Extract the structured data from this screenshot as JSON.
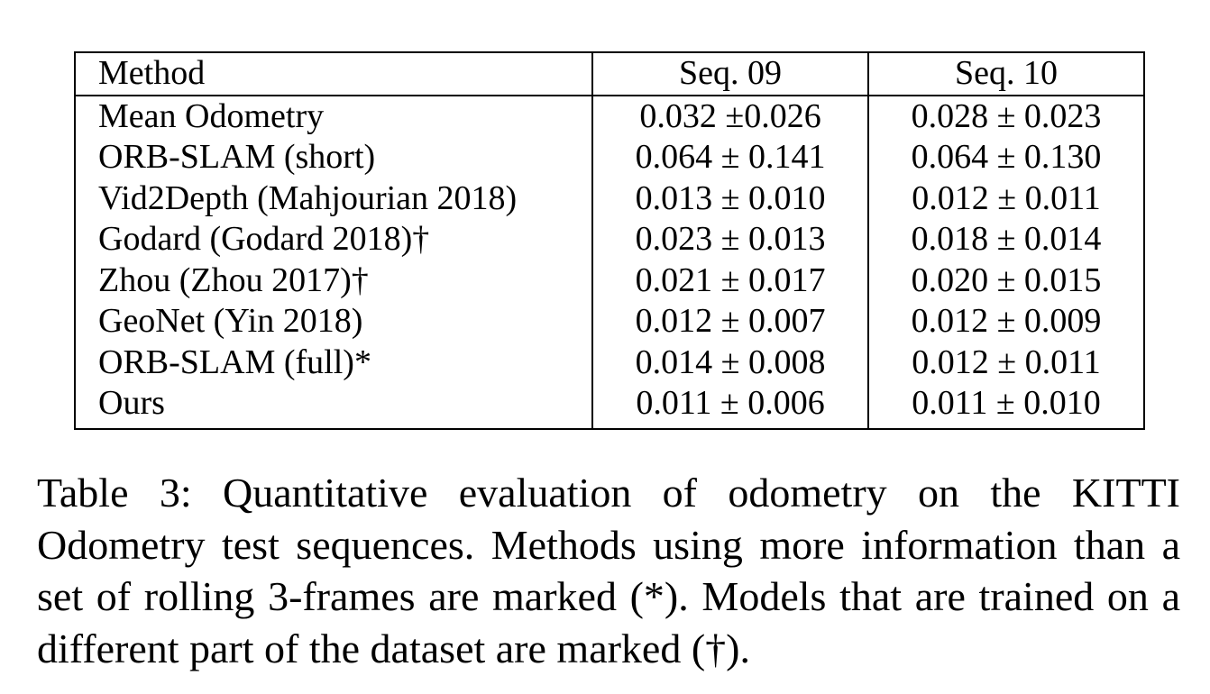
{
  "table": {
    "headers": [
      "Method",
      "Seq. 09",
      "Seq. 10"
    ],
    "rows": [
      {
        "method": "Mean Odometry",
        "seq09": "0.032 ±0.026",
        "seq10": "0.028 ± 0.023",
        "bold": false
      },
      {
        "method": "ORB-SLAM (short)",
        "seq09": "0.064 ± 0.141",
        "seq10": "0.064 ± 0.130",
        "bold": false
      },
      {
        "method": "Vid2Depth (Mahjourian 2018)",
        "seq09": "0.013 ± 0.010",
        "seq10": "0.012 ± 0.011",
        "bold": false
      },
      {
        "method": "Godard (Godard 2018)†",
        "seq09": "0.023 ± 0.013",
        "seq10": "0.018 ± 0.014",
        "bold": false
      },
      {
        "method": "Zhou (Zhou 2017)†",
        "seq09": "0.021 ± 0.017",
        "seq10": "0.020 ± 0.015",
        "bold": false
      },
      {
        "method": "GeoNet (Yin 2018)",
        "seq09": "0.012 ± 0.007",
        "seq10": "0.012 ± 0.009",
        "bold": false
      },
      {
        "method": "ORB-SLAM (full)*",
        "seq09": "0.014 ± 0.008",
        "seq10": "0.012 ± 0.011",
        "bold": false
      },
      {
        "method": "Ours",
        "seq09": "0.011 ± 0.006",
        "seq10": "0.011 ± 0.010",
        "bold": true
      }
    ]
  },
  "caption": "Table 3: Quantitative evaluation of odometry on the KITTI Odometry test sequences. Methods using more information than a set of rolling 3-frames are marked (*). Models that are trained on a different part of the dataset are marked (†)."
}
